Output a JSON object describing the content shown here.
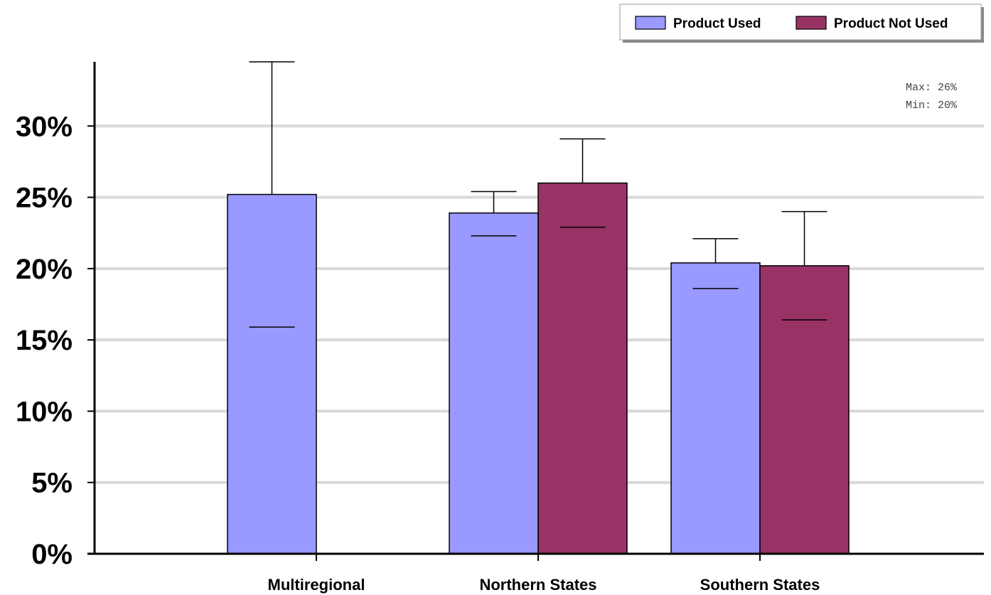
{
  "chart_data": {
    "type": "bar",
    "categories": [
      "Multiregional",
      "Northern States",
      "Southern States"
    ],
    "series": [
      {
        "name": "Product Used",
        "color": "#9999ff",
        "values": [
          25.2,
          23.9,
          20.4
        ],
        "error_low": [
          15.9,
          22.3,
          18.6
        ],
        "error_high": [
          34.5,
          25.4,
          22.1
        ]
      },
      {
        "name": "Product Not Used",
        "color": "#993366",
        "values": [
          null,
          26.0,
          20.2
        ],
        "error_low": [
          null,
          22.9,
          16.4
        ],
        "error_high": [
          null,
          29.1,
          24.0
        ]
      }
    ],
    "ylim": [
      0,
      34.5
    ],
    "yticks": [
      0,
      5,
      10,
      15,
      20,
      25,
      30
    ],
    "ytick_labels": [
      "0%",
      "5%",
      "10%",
      "15%",
      "20%",
      "25%",
      "30%"
    ],
    "grid": true,
    "legend_position": "top-right",
    "annotations": [
      "Max: 26%",
      "Min: 20%"
    ],
    "title": "",
    "xlabel": "",
    "ylabel": ""
  }
}
